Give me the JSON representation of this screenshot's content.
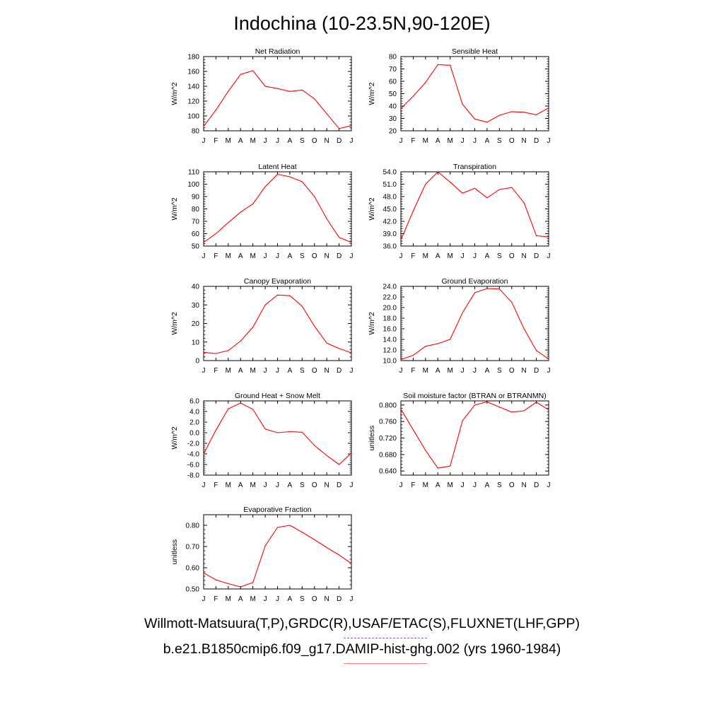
{
  "title": "Indochina (10-23.5N,90-120E)",
  "legend": {
    "observations": "Willmott-Matsuura(T,P),GRDC(R),USAF/ETAC(S),FLUXNET(LHF,GPP)",
    "model": "b.e21.B1850cmip6.f09_g17.DAMIP-hist-ghg.002 (yrs 1960-1984)",
    "observations_color": "#6b6bff",
    "model_color": "#ff0000"
  },
  "colors": {
    "series_line": "#ff0000",
    "axes": "#000000",
    "background": "#ffffff"
  },
  "chart_data": [
    {
      "type": "line",
      "title": "Net Radiation",
      "ylabel": "W/m^2",
      "categories": [
        "J",
        "F",
        "M",
        "A",
        "M",
        "J",
        "J",
        "A",
        "S",
        "O",
        "N",
        "D",
        "J"
      ],
      "ylim": [
        80,
        180
      ],
      "yticks": [
        80,
        100,
        120,
        140,
        160,
        180
      ],
      "ytick_labels": [
        "80",
        "100",
        "120",
        "140",
        "160",
        "180"
      ],
      "series": [
        {
          "values": [
            86,
            108,
            133,
            156,
            161,
            140,
            137,
            133,
            135,
            123,
            103,
            83,
            87
          ]
        }
      ]
    },
    {
      "type": "line",
      "title": "Sensible Heat",
      "ylabel": "W/m^2",
      "categories": [
        "J",
        "F",
        "M",
        "A",
        "M",
        "J",
        "J",
        "A",
        "S",
        "O",
        "N",
        "D",
        "J"
      ],
      "ylim": [
        20,
        80
      ],
      "yticks": [
        20,
        30,
        40,
        50,
        60,
        70,
        80
      ],
      "ytick_labels": [
        "20",
        "30",
        "40",
        "50",
        "60",
        "70",
        "80"
      ],
      "series": [
        {
          "values": [
            38,
            48,
            59,
            73.5,
            73,
            41.5,
            29.5,
            27,
            32.5,
            35.5,
            35,
            33,
            38.5
          ]
        }
      ]
    },
    {
      "type": "line",
      "title": "Latent Heat",
      "ylabel": "W/m^2",
      "categories": [
        "J",
        "F",
        "M",
        "A",
        "M",
        "J",
        "J",
        "A",
        "S",
        "O",
        "N",
        "D",
        "J"
      ],
      "ylim": [
        50,
        110
      ],
      "yticks": [
        50,
        60,
        70,
        80,
        90,
        100,
        110
      ],
      "ytick_labels": [
        "50",
        "60",
        "70",
        "80",
        "90",
        "100",
        "110"
      ],
      "series": [
        {
          "values": [
            53,
            60,
            69,
            77.5,
            84,
            98,
            108,
            106,
            102,
            90,
            72,
            57,
            53
          ]
        }
      ]
    },
    {
      "type": "line",
      "title": "Transpiration",
      "ylabel": "W/m^2",
      "categories": [
        "J",
        "F",
        "M",
        "A",
        "M",
        "J",
        "J",
        "A",
        "S",
        "O",
        "N",
        "D",
        "J"
      ],
      "ylim": [
        36,
        54
      ],
      "yticks": [
        36,
        39,
        42,
        45,
        48,
        51,
        54
      ],
      "ytick_labels": [
        "36.0",
        "39.0",
        "42.0",
        "45.0",
        "48.0",
        "51.0",
        "54.0"
      ],
      "series": [
        {
          "values": [
            37.5,
            44.5,
            51,
            54,
            51.5,
            48.8,
            50,
            47.7,
            49.7,
            50.2,
            46.5,
            38.5,
            38.2
          ]
        }
      ]
    },
    {
      "type": "line",
      "title": "Canopy Evaporation",
      "ylabel": "W/m^2",
      "categories": [
        "J",
        "F",
        "M",
        "A",
        "M",
        "J",
        "J",
        "A",
        "S",
        "O",
        "N",
        "D",
        "J"
      ],
      "ylim": [
        0,
        40
      ],
      "yticks": [
        0,
        10,
        20,
        30,
        40
      ],
      "ytick_labels": [
        "0",
        "10",
        "20",
        "30",
        "40"
      ],
      "series": [
        {
          "values": [
            4.4,
            3.8,
            5.4,
            10.5,
            18,
            30,
            35.3,
            35,
            29.3,
            18.5,
            9.4,
            6.5,
            4.2
          ]
        }
      ]
    },
    {
      "type": "line",
      "title": "Ground Evaporation",
      "ylabel": "W/m^2",
      "categories": [
        "J",
        "F",
        "M",
        "A",
        "M",
        "J",
        "J",
        "A",
        "S",
        "O",
        "N",
        "D",
        "J"
      ],
      "ylim": [
        10,
        24
      ],
      "yticks": [
        10,
        12,
        14,
        16,
        18,
        20,
        22,
        24
      ],
      "ytick_labels": [
        "10.0",
        "12.0",
        "14.0",
        "16.0",
        "18.0",
        "20.0",
        "22.0",
        "24.0"
      ],
      "series": [
        {
          "values": [
            10.2,
            11,
            12.7,
            13.2,
            14,
            19,
            22.8,
            23.6,
            23.5,
            21,
            16,
            11.9,
            10.3
          ]
        }
      ]
    },
    {
      "type": "line",
      "title": "Ground Heat + Snow Melt",
      "ylabel": "W/m^2",
      "categories": [
        "J",
        "F",
        "M",
        "A",
        "M",
        "J",
        "J",
        "A",
        "S",
        "O",
        "N",
        "D",
        "J"
      ],
      "ylim": [
        -8,
        6
      ],
      "yticks": [
        -8,
        -6,
        -4,
        -2,
        0,
        2,
        4,
        6
      ],
      "ytick_labels": [
        "-8.0",
        "-6.0",
        "-4.0",
        "-2.0",
        "0.0",
        "2.0",
        "4.0",
        "6.0"
      ],
      "series": [
        {
          "values": [
            -4,
            0.5,
            4.5,
            5.6,
            4.4,
            0.7,
            0,
            0.2,
            0.1,
            -2.4,
            -4.3,
            -6,
            -3.8
          ]
        }
      ]
    },
    {
      "type": "line",
      "title": "Soil moisture factor (BTRAN or BTRANMN)",
      "ylabel": "unitless",
      "categories": [
        "J",
        "F",
        "M",
        "A",
        "M",
        "J",
        "J",
        "A",
        "S",
        "O",
        "N",
        "D",
        "J"
      ],
      "ylim": [
        0.63,
        0.81
      ],
      "yticks": [
        0.64,
        0.68,
        0.72,
        0.76,
        0.8
      ],
      "ytick_labels": [
        "0.640",
        "0.680",
        "0.720",
        "0.760",
        "0.800"
      ],
      "series": [
        {
          "values": [
            0.79,
            0.74,
            0.69,
            0.647,
            0.652,
            0.762,
            0.8,
            0.808,
            0.795,
            0.783,
            0.786,
            0.807,
            0.788
          ]
        }
      ]
    },
    {
      "type": "line",
      "title": "Evaporative Fraction",
      "ylabel": "unitless",
      "categories": [
        "J",
        "F",
        "M",
        "A",
        "M",
        "J",
        "J",
        "A",
        "S",
        "O",
        "N",
        "D",
        "J"
      ],
      "ylim": [
        0.5,
        0.85
      ],
      "yticks": [
        0.5,
        0.6,
        0.7,
        0.8
      ],
      "ytick_labels": [
        "0.50",
        "0.60",
        "0.70",
        "0.80"
      ],
      "series": [
        {
          "values": [
            0.576,
            0.543,
            0.525,
            0.51,
            0.53,
            0.703,
            0.79,
            0.8,
            0.768,
            0.732,
            0.695,
            0.66,
            0.62
          ]
        }
      ]
    }
  ]
}
